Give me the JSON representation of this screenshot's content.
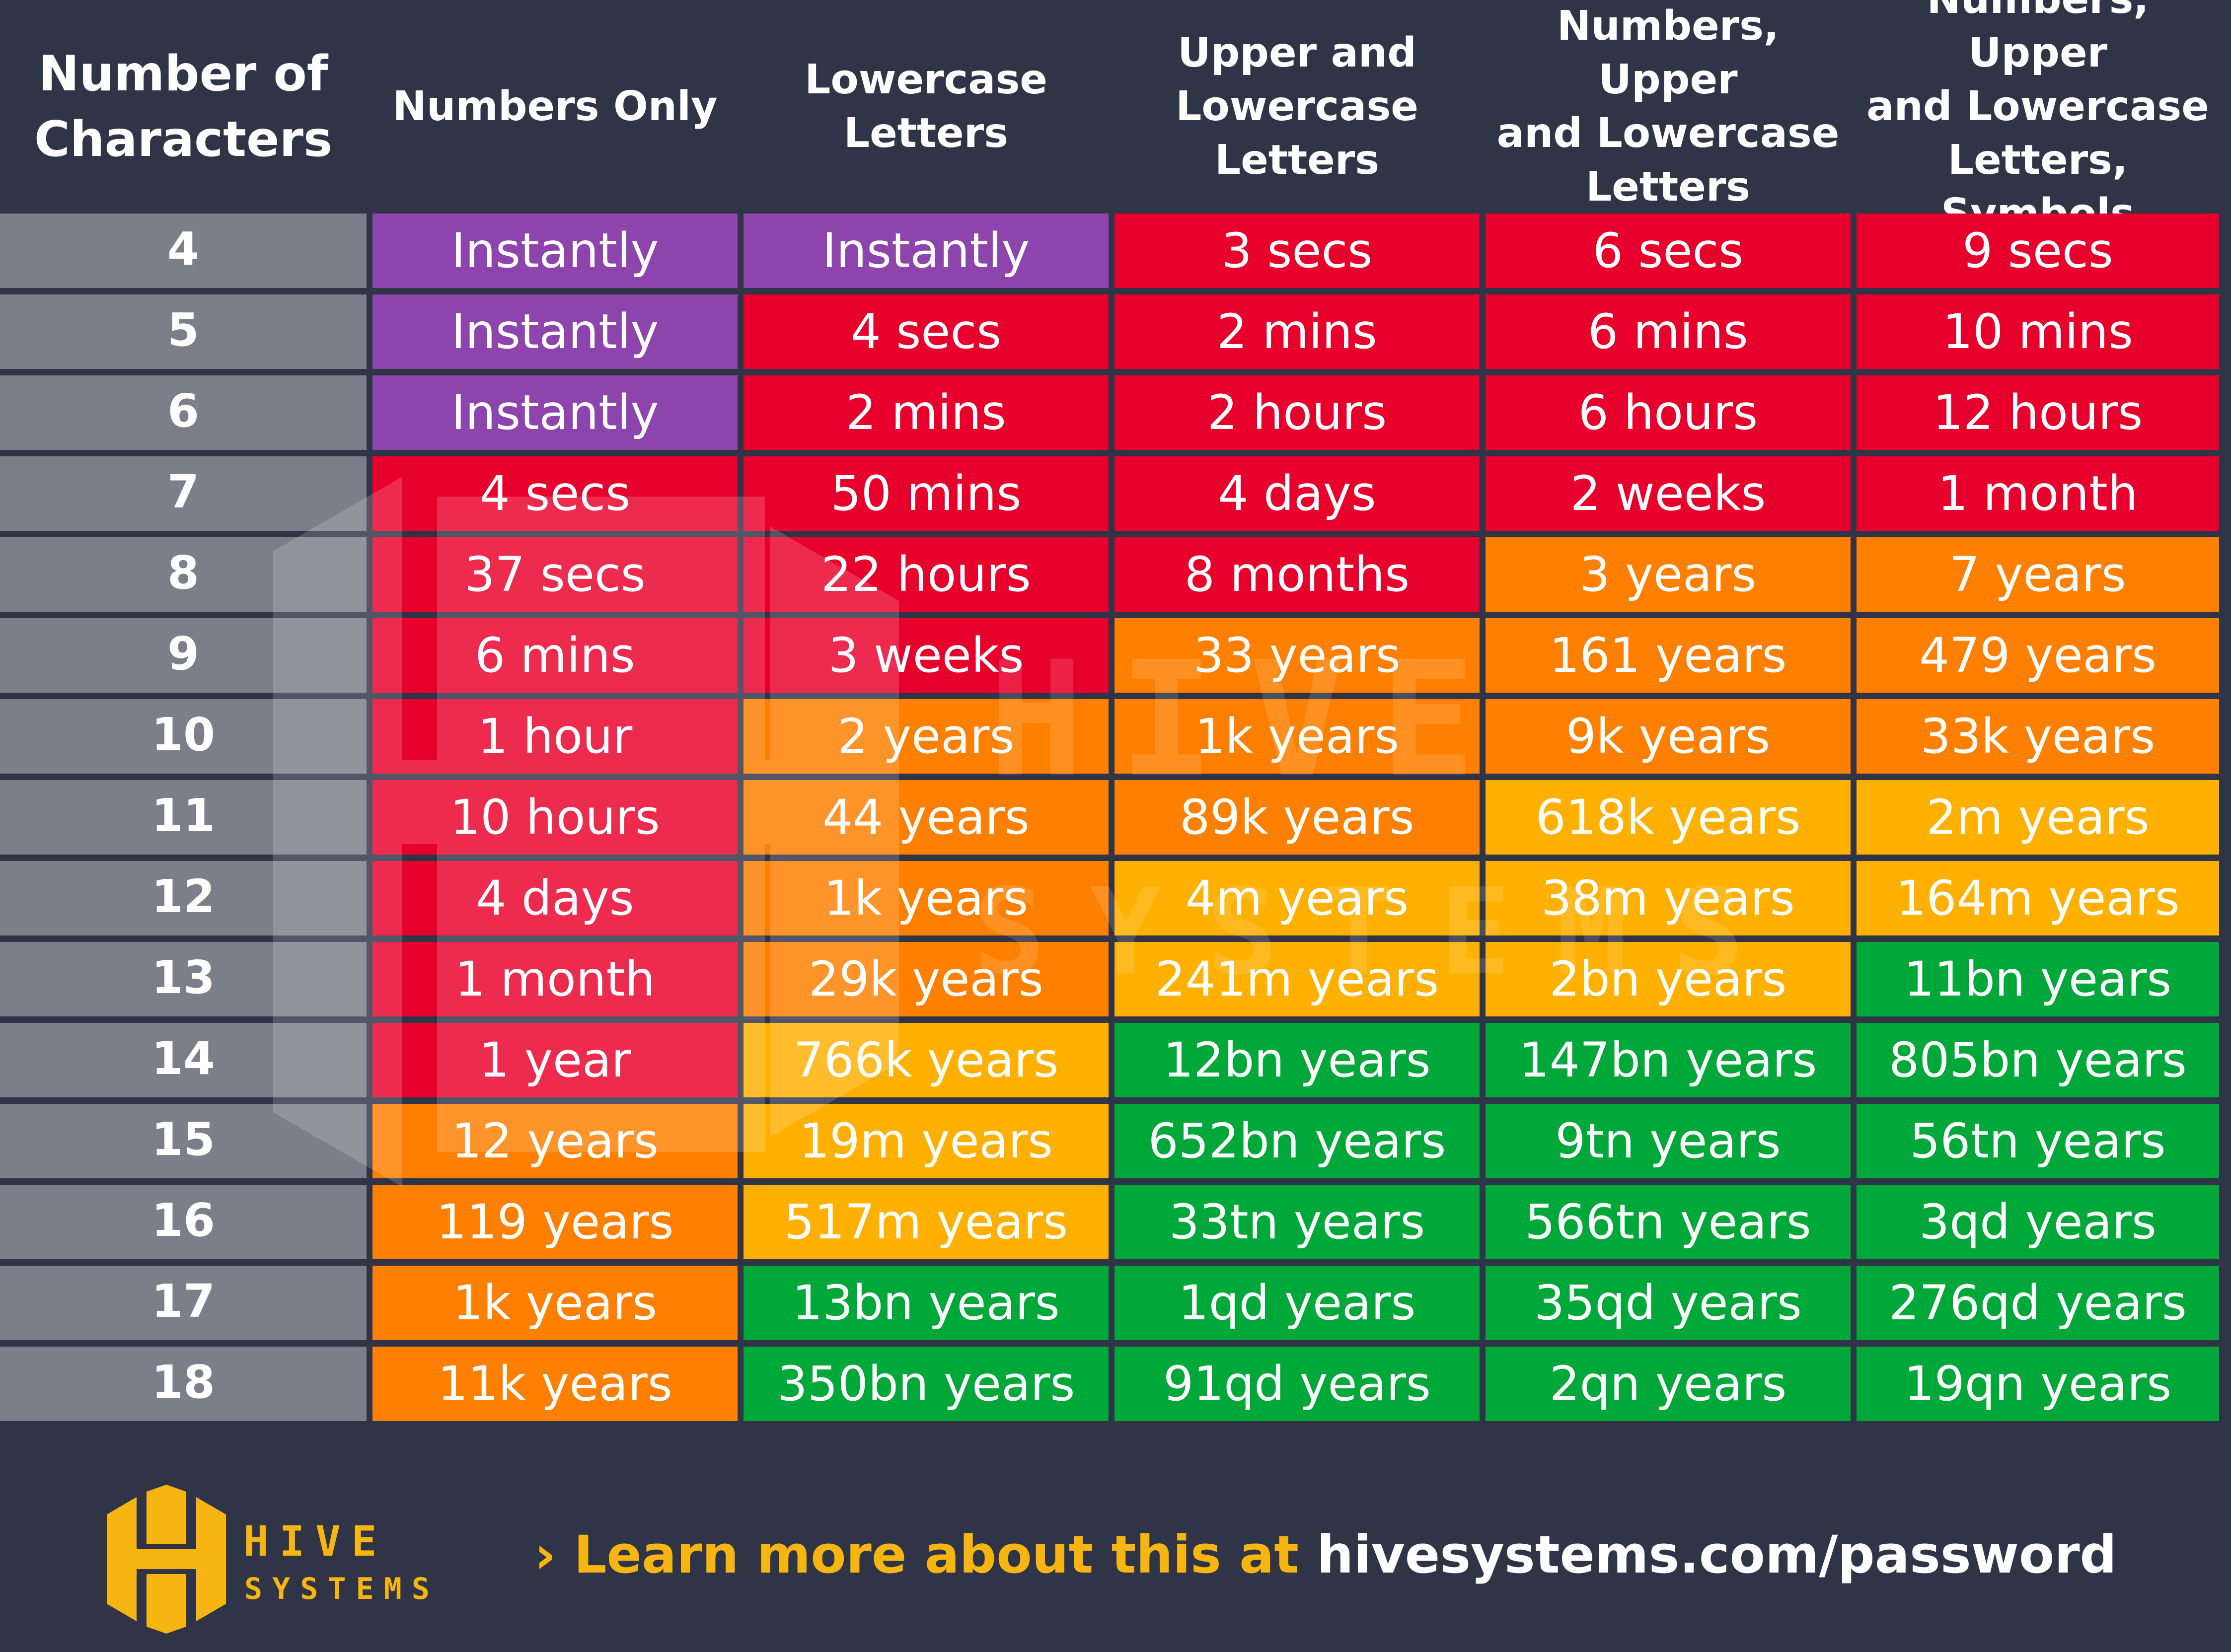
{
  "chart_data": {
    "type": "table",
    "columns": [
      "Number of\nCharacters",
      "Numbers Only",
      "Lowercase\nLetters",
      "Upper and\nLowercase\nLetters",
      "Numbers, Upper\nand Lowercase\nLetters",
      "Numbers, Upper\nand Lowercase\nLetters, Symbols"
    ],
    "rows": [
      {
        "chars": "4",
        "values": [
          "Instantly",
          "Instantly",
          "3 secs",
          "6 secs",
          "9 secs"
        ],
        "colors": [
          "purple",
          "purple",
          "red",
          "red",
          "red"
        ]
      },
      {
        "chars": "5",
        "values": [
          "Instantly",
          "4 secs",
          "2 mins",
          "6 mins",
          "10 mins"
        ],
        "colors": [
          "purple",
          "red",
          "red",
          "red",
          "red"
        ]
      },
      {
        "chars": "6",
        "values": [
          "Instantly",
          "2 mins",
          "2 hours",
          "6 hours",
          "12 hours"
        ],
        "colors": [
          "purple",
          "red",
          "red",
          "red",
          "red"
        ]
      },
      {
        "chars": "7",
        "values": [
          "4 secs",
          "50 mins",
          "4 days",
          "2 weeks",
          "1 month"
        ],
        "colors": [
          "red",
          "red",
          "red",
          "red",
          "red"
        ]
      },
      {
        "chars": "8",
        "values": [
          "37 secs",
          "22 hours",
          "8 months",
          "3 years",
          "7 years"
        ],
        "colors": [
          "red",
          "red",
          "red",
          "orange",
          "orange"
        ]
      },
      {
        "chars": "9",
        "values": [
          "6 mins",
          "3 weeks",
          "33 years",
          "161 years",
          "479 years"
        ],
        "colors": [
          "red",
          "red",
          "orange",
          "orange",
          "orange"
        ]
      },
      {
        "chars": "10",
        "values": [
          "1 hour",
          "2 years",
          "1k years",
          "9k years",
          "33k years"
        ],
        "colors": [
          "red",
          "orange",
          "orange",
          "orange",
          "orange"
        ]
      },
      {
        "chars": "11",
        "values": [
          "10 hours",
          "44 years",
          "89k years",
          "618k years",
          "2m years"
        ],
        "colors": [
          "red",
          "orange",
          "orange",
          "yellow",
          "yellow"
        ]
      },
      {
        "chars": "12",
        "values": [
          "4 days",
          "1k years",
          "4m years",
          "38m years",
          "164m years"
        ],
        "colors": [
          "red",
          "orange",
          "yellow",
          "yellow",
          "yellow"
        ]
      },
      {
        "chars": "13",
        "values": [
          "1 month",
          "29k years",
          "241m years",
          "2bn years",
          "11bn years"
        ],
        "colors": [
          "red",
          "orange",
          "yellow",
          "yellow",
          "green"
        ]
      },
      {
        "chars": "14",
        "values": [
          "1 year",
          "766k years",
          "12bn years",
          "147bn years",
          "805bn years"
        ],
        "colors": [
          "red",
          "yellow",
          "green",
          "green",
          "green"
        ]
      },
      {
        "chars": "15",
        "values": [
          "12 years",
          "19m years",
          "652bn years",
          "9tn years",
          "56tn years"
        ],
        "colors": [
          "orange",
          "yellow",
          "green",
          "green",
          "green"
        ]
      },
      {
        "chars": "16",
        "values": [
          "119 years",
          "517m years",
          "33tn years",
          "566tn years",
          "3qd years"
        ],
        "colors": [
          "orange",
          "yellow",
          "green",
          "green",
          "green"
        ]
      },
      {
        "chars": "17",
        "values": [
          "1k years",
          "13bn years",
          "1qd years",
          "35qd years",
          "276qd years"
        ],
        "colors": [
          "orange",
          "green",
          "green",
          "green",
          "green"
        ]
      },
      {
        "chars": "18",
        "values": [
          "11k years",
          "350bn years",
          "91qd years",
          "2qn years",
          "19qn years"
        ],
        "colors": [
          "orange",
          "green",
          "green",
          "green",
          "green"
        ]
      }
    ],
    "palette": {
      "purple": "#8e44ad",
      "red": "#e8002c",
      "orange": "#ff7f00",
      "yellow": "#ffb000",
      "green": "#00a839",
      "chars_cell": "#7a7f8a",
      "background": "#2f3447",
      "accent": "#f6b511"
    }
  },
  "watermark": {
    "line1": "HIVE",
    "line2": "SYSTEMS"
  },
  "footer": {
    "logo_line1": "HIVE",
    "logo_line2": "SYSTEMS",
    "chevron": "›",
    "link_prefix": "Learn more about this at ",
    "link_url": "hivesystems.com/password"
  }
}
